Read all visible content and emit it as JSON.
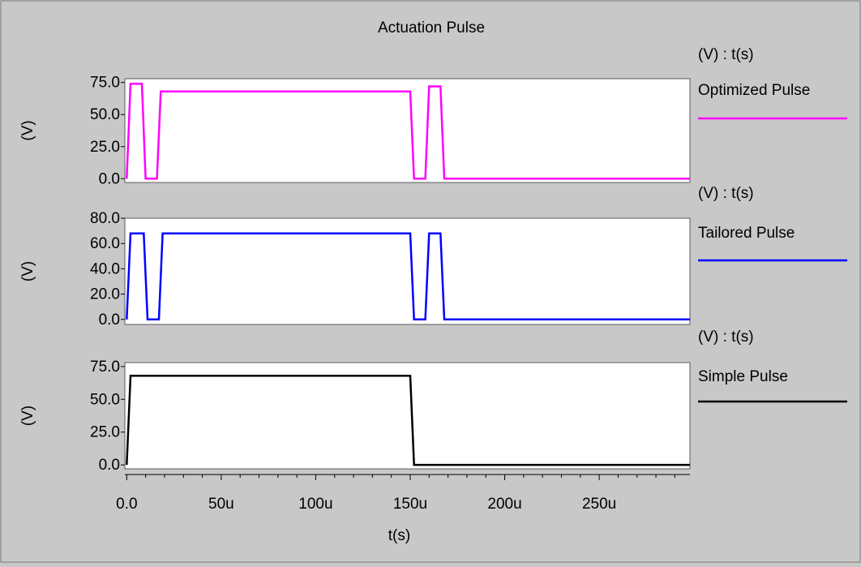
{
  "title": "Actuation Pulse",
  "colors": {
    "background": "#c8c8c8",
    "plot_background": "#ffffff"
  },
  "chart_data": {
    "type": "line",
    "title": "Actuation Pulse",
    "xlabel": "t(s)",
    "xlim": [
      -1,
      298
    ],
    "x_unit": "u",
    "x_ticks": [
      0,
      50,
      100,
      150,
      200,
      250
    ],
    "x_tick_labels": [
      "0.0",
      "50u",
      "100u",
      "150u",
      "200u",
      "250u"
    ],
    "grid": false,
    "legend_position": "right",
    "panels": [
      {
        "axis_header": "(V) : t(s)",
        "ylabel": "(V)",
        "ylim": [
          -3,
          78
        ],
        "y_ticks": [
          0,
          25,
          50,
          75
        ],
        "y_tick_labels": [
          "0.0",
          "25.0",
          "50.0",
          "75.0"
        ],
        "series": [
          {
            "name": "Optimized Pulse",
            "color": "#ff00ff",
            "x": [
              0,
              2,
              8,
              10,
              16,
              18,
              150,
              152,
              158,
              160,
              166,
              168,
              298
            ],
            "y": [
              0,
              74,
              74,
              0,
              0,
              68,
              68,
              0,
              0,
              72,
              72,
              0,
              0
            ]
          }
        ]
      },
      {
        "axis_header": "(V) : t(s)",
        "ylabel": "(V)",
        "ylim": [
          -4,
          80
        ],
        "y_ticks": [
          0,
          20,
          40,
          60,
          80
        ],
        "y_tick_labels": [
          "0.0",
          "20.0",
          "40.0",
          "60.0",
          "80.0"
        ],
        "series": [
          {
            "name": "Tailored Pulse",
            "color": "#0000ff",
            "x": [
              0,
              2,
              9,
              11,
              17,
              19,
              150,
              152,
              158,
              160,
              166,
              168,
              298
            ],
            "y": [
              0,
              68,
              68,
              0,
              0,
              68,
              68,
              0,
              0,
              68,
              68,
              0,
              0
            ]
          }
        ]
      },
      {
        "axis_header": "(V) : t(s)",
        "ylabel": "(V)",
        "ylim": [
          -3,
          78
        ],
        "y_ticks": [
          0,
          25,
          50,
          75
        ],
        "y_tick_labels": [
          "0.0",
          "25.0",
          "50.0",
          "75.0"
        ],
        "series": [
          {
            "name": "Simple Pulse",
            "color": "#000000",
            "x": [
              0,
              2,
              150,
              152,
              298
            ],
            "y": [
              0,
              68,
              68,
              0,
              0
            ]
          }
        ]
      }
    ]
  }
}
